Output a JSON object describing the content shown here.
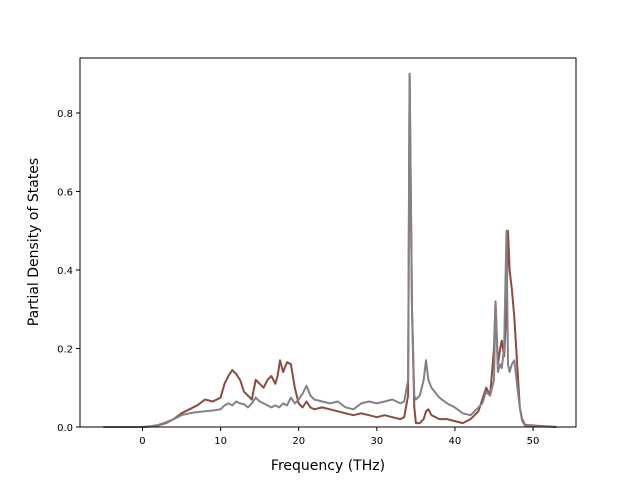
{
  "chart_data": {
    "type": "line",
    "title": "",
    "xlabel": "Frequency (THz)",
    "ylabel": "Partial Density of States",
    "xlim": [
      -8,
      55.5
    ],
    "ylim": [
      0,
      0.94
    ],
    "xticks": [
      0,
      10,
      20,
      30,
      40,
      50
    ],
    "yticks": [
      0.0,
      0.2,
      0.4,
      0.6,
      0.8
    ],
    "ytick_labels": [
      "0.0",
      "0.2",
      "0.4",
      "0.6",
      "0.8"
    ],
    "grid": false,
    "legend": "none",
    "series": [
      {
        "color": "#8c4a40",
        "x": [
          -5,
          0,
          1,
          2,
          3,
          4,
          5,
          6,
          7,
          8,
          9,
          10,
          10.5,
          11,
          11.5,
          12,
          12.5,
          13,
          13.5,
          14,
          14.5,
          15,
          15.5,
          16,
          16.5,
          17,
          17.3,
          17.6,
          18,
          18.5,
          19,
          19.5,
          20,
          20.5,
          21,
          21.5,
          22,
          23,
          24,
          25,
          26,
          27,
          28,
          29,
          30,
          31,
          32,
          33,
          33.5,
          34,
          34.2,
          34.5,
          34.8,
          35,
          35.5,
          36,
          36.3,
          36.6,
          37,
          38,
          39,
          40,
          41,
          42,
          43,
          43.5,
          44,
          44.5,
          45,
          45.2,
          45.5,
          45.8,
          46,
          46.3,
          46.6,
          46.8,
          47,
          47.3,
          47.6,
          48,
          48.3,
          48.6,
          49,
          53
        ],
        "y": [
          0,
          0,
          0.001,
          0.004,
          0.01,
          0.02,
          0.035,
          0.045,
          0.055,
          0.07,
          0.065,
          0.075,
          0.11,
          0.13,
          0.145,
          0.135,
          0.12,
          0.09,
          0.08,
          0.07,
          0.12,
          0.11,
          0.1,
          0.12,
          0.13,
          0.11,
          0.13,
          0.17,
          0.14,
          0.165,
          0.16,
          0.1,
          0.06,
          0.05,
          0.065,
          0.05,
          0.045,
          0.05,
          0.045,
          0.04,
          0.035,
          0.03,
          0.035,
          0.03,
          0.025,
          0.03,
          0.025,
          0.02,
          0.025,
          0.08,
          0.9,
          0.3,
          0.05,
          0.01,
          0.01,
          0.02,
          0.04,
          0.045,
          0.03,
          0.02,
          0.02,
          0.015,
          0.01,
          0.02,
          0.04,
          0.07,
          0.1,
          0.08,
          0.2,
          0.32,
          0.16,
          0.2,
          0.22,
          0.18,
          0.3,
          0.5,
          0.4,
          0.35,
          0.28,
          0.15,
          0.05,
          0.02,
          0.005,
          0
        ]
      },
      {
        "color": "#85808a",
        "x": [
          -5,
          0,
          1,
          2,
          3,
          4,
          5,
          6,
          7,
          8,
          9,
          10,
          10.5,
          11,
          11.5,
          12,
          12.5,
          13,
          13.5,
          14,
          14.5,
          15,
          15.5,
          16,
          16.5,
          17,
          17.5,
          18,
          18.5,
          19,
          19.5,
          20,
          20.5,
          21,
          21.5,
          22,
          23,
          24,
          25,
          26,
          27,
          28,
          29,
          30,
          31,
          32,
          33,
          33.5,
          34,
          34.2,
          34.5,
          34.8,
          35,
          35.5,
          36,
          36.3,
          36.6,
          37,
          38,
          39,
          40,
          41,
          42,
          43,
          43.5,
          44,
          44.5,
          45,
          45.2,
          45.5,
          45.8,
          46,
          46.3,
          46.6,
          46.8,
          47,
          47.3,
          47.6,
          48,
          48.3,
          48.6,
          49,
          53
        ],
        "y": [
          0,
          0,
          0.002,
          0.005,
          0.012,
          0.02,
          0.03,
          0.035,
          0.038,
          0.04,
          0.042,
          0.045,
          0.055,
          0.06,
          0.055,
          0.065,
          0.06,
          0.058,
          0.05,
          0.06,
          0.075,
          0.065,
          0.06,
          0.055,
          0.05,
          0.055,
          0.05,
          0.06,
          0.055,
          0.075,
          0.06,
          0.07,
          0.085,
          0.105,
          0.08,
          0.07,
          0.065,
          0.06,
          0.065,
          0.05,
          0.045,
          0.06,
          0.065,
          0.06,
          0.065,
          0.07,
          0.06,
          0.065,
          0.12,
          0.9,
          0.3,
          0.08,
          0.07,
          0.08,
          0.12,
          0.17,
          0.12,
          0.1,
          0.075,
          0.06,
          0.05,
          0.035,
          0.03,
          0.05,
          0.06,
          0.09,
          0.08,
          0.12,
          0.32,
          0.14,
          0.16,
          0.15,
          0.2,
          0.5,
          0.16,
          0.14,
          0.16,
          0.17,
          0.1,
          0.05,
          0.015,
          0.003,
          0
        ]
      }
    ]
  }
}
